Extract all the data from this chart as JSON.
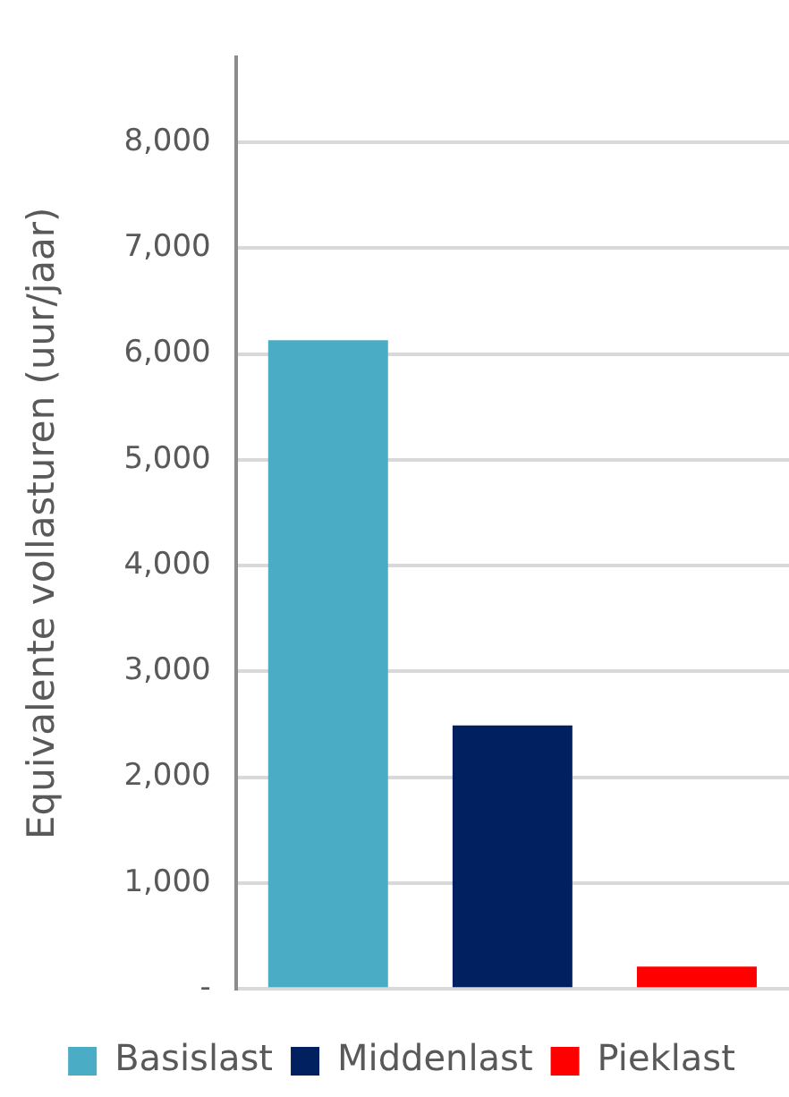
{
  "chart_data": {
    "type": "bar",
    "ylabel": "Equivalente vollasturen (uur/jaar)",
    "categories": [
      null,
      null,
      null
    ],
    "series": [
      {
        "name": "Basislast",
        "color": "#4bacc6",
        "values": [
          6130,
          null,
          null
        ]
      },
      {
        "name": "Middenlast",
        "color": "#002060",
        "values": [
          null,
          2490,
          null
        ]
      },
      {
        "name": "Pieklast",
        "color": "#ff0000",
        "values": [
          null,
          null,
          210
        ]
      }
    ],
    "ylim": [
      0,
      8800
    ],
    "yticks": [
      {
        "value": 0,
        "label": "-"
      },
      {
        "value": 1000,
        "label": "1,000"
      },
      {
        "value": 2000,
        "label": "2,000"
      },
      {
        "value": 3000,
        "label": "3,000"
      },
      {
        "value": 4000,
        "label": "4,000"
      },
      {
        "value": 5000,
        "label": "5,000"
      },
      {
        "value": 6000,
        "label": "6,000"
      },
      {
        "value": 7000,
        "label": "7,000"
      },
      {
        "value": 8000,
        "label": "8,000"
      }
    ],
    "grid": "y",
    "legend": "bottom"
  }
}
